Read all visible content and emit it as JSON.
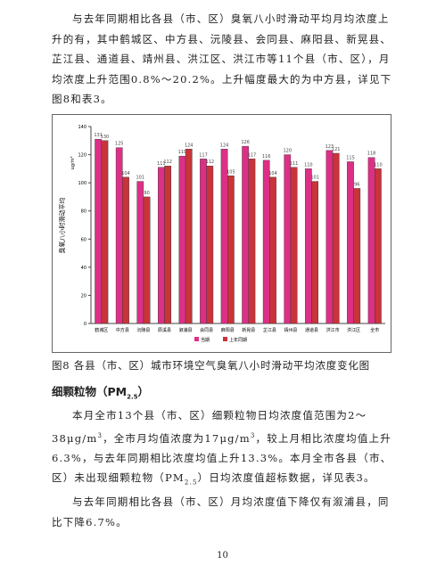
{
  "paragraph_1": "与去年同期相比各县（市、区）臭氧八小时滑动平均月均浓度上升的有，其中鹤城区、中方县、沅陵县、会同县、麻阳县、新晃县、芷江县、通道县、靖州县、洪江区、洪江市等11个县（市、区），月均浓度上升范围0.8%～20.2%。上升幅度最大的为中方县，详见下图8和表3。",
  "chart_data": {
    "type": "bar",
    "y_label": "臭氧八小时滑动平均",
    "y_unit": "ug/m³",
    "categories": [
      "鹤城区",
      "中方县",
      "沅陵县",
      "辰溪县",
      "溆浦县",
      "会同县",
      "麻阳县",
      "新晃县",
      "芷江县",
      "靖州县",
      "通道县",
      "洪江市",
      "洪江区",
      "全市"
    ],
    "series": [
      {
        "name": "当期",
        "color": "#dd2f86",
        "values": [
          131,
          125,
          101,
          111,
          119,
          117,
          124,
          126,
          116,
          120,
          110,
          123,
          115,
          118
        ]
      },
      {
        "name": "上年同期",
        "color": "#c8343a",
        "values": [
          130,
          104,
          90,
          112,
          124,
          112,
          105,
          117,
          104,
          111,
          101,
          121,
          96,
          110
        ]
      }
    ],
    "ylim": [
      0,
      140
    ],
    "yticks": [
      0,
      20,
      40,
      60,
      80,
      100,
      120,
      140
    ]
  },
  "caption": "图8 各县（市、区）城市环境空气臭氧八小时滑动平均浓度变化图",
  "heading": [
    "细颗粒物（PM",
    "2.5",
    "）"
  ],
  "paragraph_2": [
    "本月全市13个县（市、区）细颗粒物日均浓度值范围为2～38μg/m",
    "3",
    "，全市月均值浓度为17μg/m",
    "3",
    "，较上月相比浓度均值上升6.3%，与去年同期相比浓度均值上升13.3%。本月全市各县（市、区）未出现细颗粒物（PM",
    "2.5",
    "）日均浓度值超标数据，详见表3。"
  ],
  "paragraph_3": "与去年同期相比各县（市、区）月均浓度值下降仅有溆浦县，同比下降6.7%。",
  "page_number": "10"
}
